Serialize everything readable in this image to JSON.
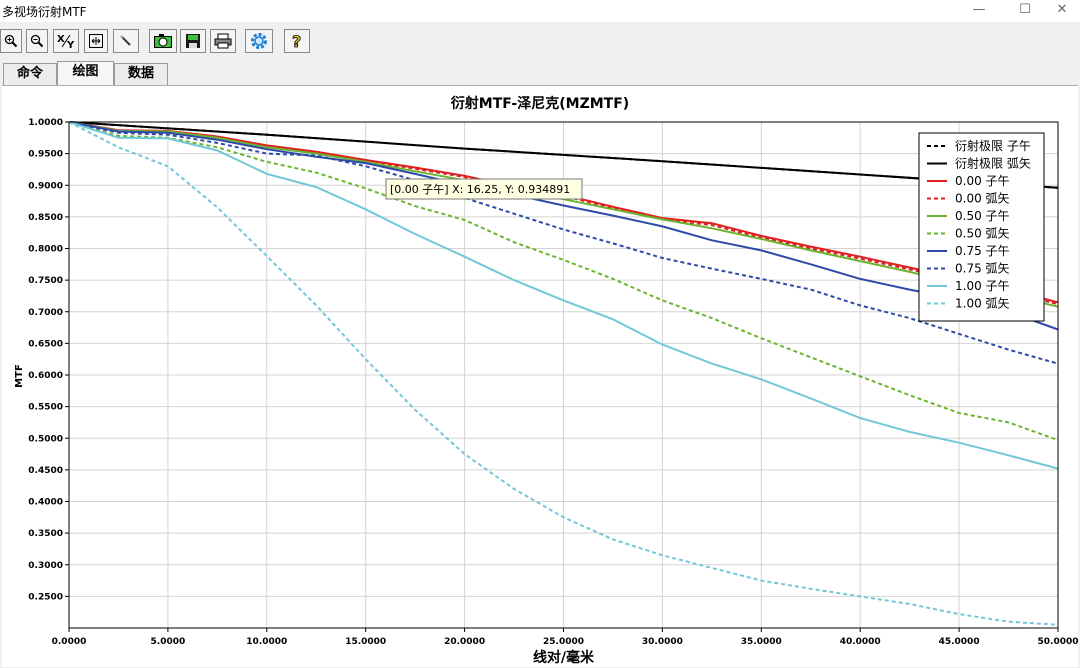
{
  "window": {
    "title": "多视场衍射MTF",
    "minimize": "—",
    "maximize": "☐",
    "close": "✕"
  },
  "toolbar": [
    {
      "name": "zoom-in-button",
      "icon": "zoom-in-icon"
    },
    {
      "name": "zoom-out-button",
      "icon": "zoom-out-icon"
    },
    {
      "name": "xy-scale-button",
      "icon": "xy-icon"
    },
    {
      "name": "fit-view-button",
      "icon": "fit-icon"
    },
    {
      "name": "pointer-button",
      "icon": "pencil-icon"
    },
    {
      "name": "snapshot-button",
      "icon": "camera-icon"
    },
    {
      "name": "save-button",
      "icon": "floppy-icon"
    },
    {
      "name": "print-button",
      "icon": "printer-icon"
    },
    {
      "name": "settings-button",
      "icon": "gear-icon"
    },
    {
      "name": "help-button",
      "icon": "help-icon"
    }
  ],
  "tabs": [
    {
      "label": "命令",
      "active": false
    },
    {
      "label": "绘图",
      "active": true
    },
    {
      "label": "数据",
      "active": false
    }
  ],
  "tooltip": {
    "text": "[0.00 子午] X: 16.25, Y: 0.934891"
  },
  "chart_data": {
    "type": "line",
    "title": "衍射MTF-泽尼克(MZMTF)",
    "xlabel": "线对/毫米",
    "ylabel": "MTF",
    "xlim": [
      0,
      50
    ],
    "ylim": [
      0.2,
      1.0
    ],
    "grid": true,
    "legend_position": "top-right",
    "x_ticks": [
      "0.0000",
      "5.0000",
      "10.0000",
      "15.0000",
      "20.0000",
      "25.0000",
      "30.0000",
      "35.0000",
      "40.0000",
      "45.0000",
      "50.0000"
    ],
    "y_ticks": [
      "1.0000",
      "0.9500",
      "0.9000",
      "0.8500",
      "0.8000",
      "0.7500",
      "0.7000",
      "0.6500",
      "0.6000",
      "0.5500",
      "0.5000",
      "0.4500",
      "0.4000",
      "0.3500",
      "0.3000",
      "0.2500"
    ],
    "series": [
      {
        "name": "衍射极限 子午",
        "color": "#000000",
        "dashed": true,
        "x": [
          0,
          10,
          20,
          30,
          40,
          50
        ],
        "y": [
          1.0,
          0.98,
          0.958,
          0.938,
          0.917,
          0.896
        ]
      },
      {
        "name": "衍射极限 弧矢",
        "color": "#000000",
        "dashed": false,
        "x": [
          0,
          10,
          20,
          30,
          40,
          50
        ],
        "y": [
          1.0,
          0.98,
          0.958,
          0.938,
          0.917,
          0.896
        ]
      },
      {
        "name": "0.00 子午",
        "color": "#e02020",
        "dashed": false,
        "x": [
          0,
          2.5,
          5,
          7.5,
          10,
          12.5,
          15,
          17.5,
          20,
          22.5,
          25,
          27.5,
          30,
          32.5,
          35,
          37.5,
          40,
          42.5,
          45,
          47.5,
          50
        ],
        "y": [
          1.0,
          0.987,
          0.986,
          0.977,
          0.963,
          0.953,
          0.94,
          0.928,
          0.915,
          0.898,
          0.885,
          0.866,
          0.848,
          0.84,
          0.82,
          0.803,
          0.787,
          0.77,
          0.753,
          0.735,
          0.715
        ]
      },
      {
        "name": "0.00 弧矢",
        "color": "#e02020",
        "dashed": true,
        "x": [
          0,
          2.5,
          5,
          7.5,
          10,
          12.5,
          15,
          17.5,
          20,
          22.5,
          25,
          27.5,
          30,
          32.5,
          35,
          37.5,
          40,
          42.5,
          45,
          47.5,
          50
        ],
        "y": [
          1.0,
          0.986,
          0.985,
          0.976,
          0.962,
          0.952,
          0.939,
          0.926,
          0.913,
          0.896,
          0.883,
          0.864,
          0.846,
          0.837,
          0.817,
          0.8,
          0.784,
          0.767,
          0.75,
          0.732,
          0.712
        ]
      },
      {
        "name": "0.50 子午",
        "color": "#6ab42d",
        "dashed": false,
        "x": [
          0,
          2.5,
          5,
          7.5,
          10,
          12.5,
          15,
          17.5,
          20,
          22.5,
          25,
          27.5,
          30,
          32.5,
          35,
          37.5,
          40,
          42.5,
          45,
          47.5,
          50
        ],
        "y": [
          1.0,
          0.986,
          0.985,
          0.975,
          0.96,
          0.95,
          0.937,
          0.922,
          0.908,
          0.892,
          0.878,
          0.862,
          0.846,
          0.832,
          0.815,
          0.797,
          0.78,
          0.763,
          0.745,
          0.727,
          0.708
        ]
      },
      {
        "name": "0.50 弧矢",
        "color": "#6ab42d",
        "dashed": true,
        "x": [
          0,
          2.5,
          5,
          7.5,
          10,
          12.5,
          15,
          17.5,
          20,
          22.5,
          25,
          27.5,
          30,
          32.5,
          35,
          37.5,
          40,
          42.5,
          45,
          47.5,
          50
        ],
        "y": [
          1.0,
          0.978,
          0.975,
          0.96,
          0.937,
          0.92,
          0.895,
          0.867,
          0.845,
          0.81,
          0.782,
          0.752,
          0.718,
          0.69,
          0.658,
          0.628,
          0.598,
          0.568,
          0.54,
          0.525,
          0.497
        ]
      },
      {
        "name": "0.75 子午",
        "color": "#2e4aa8",
        "dashed": false,
        "x": [
          0,
          2.5,
          5,
          7.5,
          10,
          12.5,
          15,
          17.5,
          20,
          22.5,
          25,
          27.5,
          30,
          32.5,
          35,
          37.5,
          40,
          42.5,
          45,
          47.5,
          50
        ],
        "y": [
          1.0,
          0.985,
          0.983,
          0.972,
          0.957,
          0.945,
          0.935,
          0.918,
          0.9,
          0.885,
          0.868,
          0.852,
          0.835,
          0.813,
          0.797,
          0.775,
          0.752,
          0.735,
          0.72,
          0.7,
          0.672
        ]
      },
      {
        "name": "0.75 弧矢",
        "color": "#2e4aa8",
        "dashed": true,
        "x": [
          0,
          2.5,
          5,
          7.5,
          10,
          12.5,
          15,
          17.5,
          20,
          22.5,
          25,
          27.5,
          30,
          32.5,
          35,
          37.5,
          40,
          42.5,
          45,
          47.5,
          50
        ],
        "y": [
          1.0,
          0.983,
          0.98,
          0.967,
          0.95,
          0.947,
          0.93,
          0.908,
          0.88,
          0.855,
          0.83,
          0.808,
          0.785,
          0.768,
          0.752,
          0.735,
          0.71,
          0.69,
          0.665,
          0.64,
          0.618
        ]
      },
      {
        "name": "1.00 子午",
        "color": "#72c8d8",
        "dashed": false,
        "x": [
          0,
          2.5,
          5,
          7.5,
          10,
          12.5,
          15,
          17.5,
          20,
          22.5,
          25,
          27.5,
          30,
          32.5,
          35,
          37.5,
          40,
          42.5,
          45,
          47.5,
          50
        ],
        "y": [
          1.0,
          0.975,
          0.974,
          0.955,
          0.918,
          0.897,
          0.862,
          0.823,
          0.787,
          0.75,
          0.718,
          0.688,
          0.648,
          0.618,
          0.593,
          0.563,
          0.532,
          0.51,
          0.493,
          0.473,
          0.452
        ]
      },
      {
        "name": "1.00 弧矢",
        "color": "#72c8d8",
        "dashed": true,
        "x": [
          0,
          2.5,
          5,
          7.5,
          10,
          12.5,
          15,
          17.5,
          20,
          22.5,
          25,
          27.5,
          30,
          32.5,
          35,
          37.5,
          40,
          42.5,
          45,
          47.5,
          50
        ],
        "y": [
          1.0,
          0.96,
          0.93,
          0.865,
          0.788,
          0.71,
          0.625,
          0.545,
          0.475,
          0.42,
          0.375,
          0.34,
          0.315,
          0.295,
          0.275,
          0.262,
          0.25,
          0.238,
          0.222,
          0.21,
          0.205
        ]
      }
    ]
  }
}
